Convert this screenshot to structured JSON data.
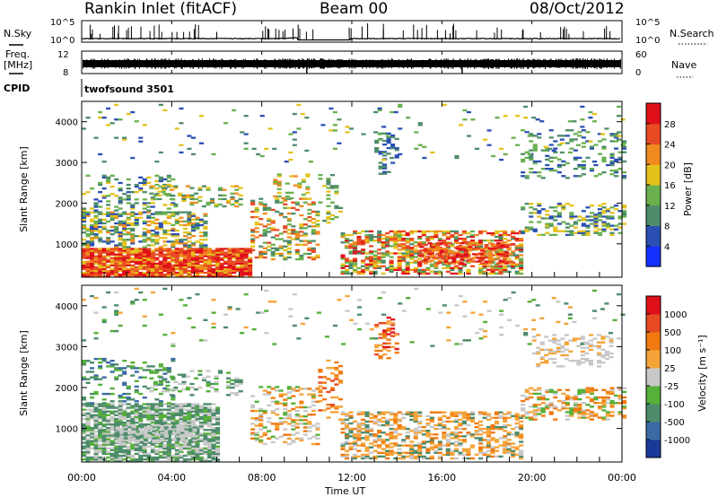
{
  "header": {
    "station": "Rankin Inlet (fitACF)",
    "beam": "Beam 00",
    "date": "08/Oct/2012"
  },
  "nsky": {
    "label": "N.Sky",
    "tick_top": "10^5",
    "tick_bottom": "10^0",
    "right_label": "N.Search",
    "right_ticks": [
      "10^5",
      "10^0"
    ]
  },
  "freq": {
    "label_line1": "Freq.",
    "label_line2": "[MHz]",
    "ticks_left": [
      "12",
      "8"
    ],
    "ticks_right": [
      "60",
      "0"
    ],
    "right_label": "Nave"
  },
  "cpid": {
    "label": "CPID",
    "program": "twofsound  3501"
  },
  "chart_data": [
    {
      "type": "heatmap",
      "name": "Power",
      "ylabel": "Slant Range [km]",
      "yticks": [
        "1000",
        "2000",
        "3000",
        "4000"
      ],
      "ylim": [
        180,
        4500
      ],
      "colorbar": {
        "label": "Power [dB]",
        "ticks": [
          "4",
          "8",
          "12",
          "16",
          "20",
          "24",
          "28"
        ],
        "colors": [
          "#1430ff",
          "#2a4fb4",
          "#4d8c6a",
          "#6ab04f",
          "#e4c21c",
          "#f08a1e",
          "#e84a22",
          "#e0101a"
        ]
      }
    },
    {
      "type": "heatmap",
      "name": "Velocity",
      "ylabel": "Slant Range [km]",
      "yticks": [
        "1000",
        "2000",
        "3000",
        "4000"
      ],
      "ylim": [
        180,
        4500
      ],
      "colorbar": {
        "label": "Velocity  [m s⁻¹]",
        "ticks": [
          "1000",
          "500",
          "100",
          "25",
          "-25",
          "-100",
          "-500",
          "-1000"
        ],
        "colors": [
          "#1a3a9a",
          "#3a6aa4",
          "#4d8c6a",
          "#56b03a",
          "#c8c8c8",
          "#f5a43a",
          "#f07a10",
          "#e84a22",
          "#e0101a"
        ]
      }
    }
  ],
  "xaxis": {
    "label": "Time UT",
    "ticks": [
      "00:00",
      "04:00",
      "08:00",
      "12:00",
      "16:00",
      "20:00",
      "00:00"
    ]
  }
}
